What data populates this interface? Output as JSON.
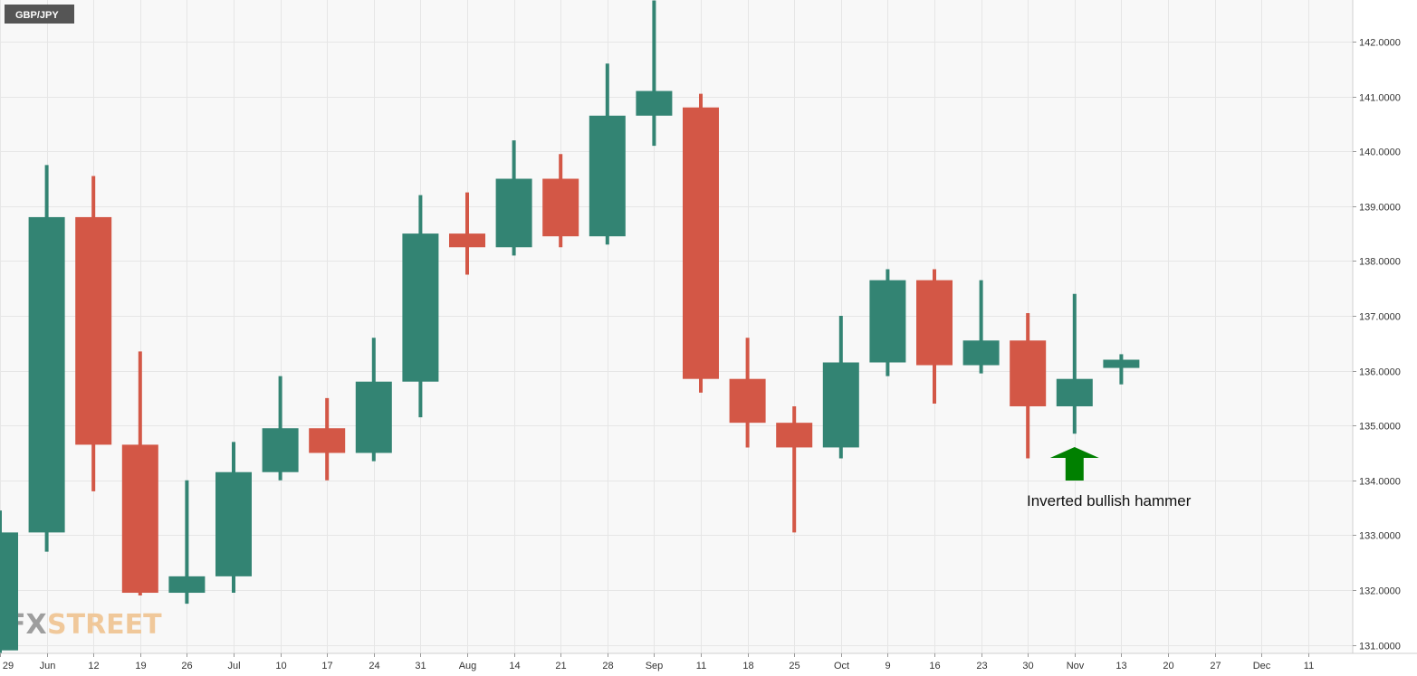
{
  "symbol": "GBP/JPY",
  "brand": {
    "fx": "FX",
    "street": "STREET"
  },
  "annotation": {
    "text": "Inverted bullish hammer",
    "arrow_color": "#008000"
  },
  "colors": {
    "bull": "#338473",
    "bear": "#d35746",
    "grid": "#e6e6e6",
    "plot_bg": "#f8f8f8",
    "axis_bg": "#ffffff",
    "symbol_bg": "#555555"
  },
  "chart_data": {
    "type": "candlestick",
    "timeframe": "weekly",
    "ylim": [
      130.8,
      142.8
    ],
    "yticks": [
      "142.0000",
      "141.0000",
      "140.0000",
      "139.0000",
      "138.0000",
      "137.0000",
      "136.0000",
      "135.0000",
      "134.0000",
      "133.0000",
      "132.0000",
      "131.0000"
    ],
    "xticks": [
      "29",
      "Jun",
      "12",
      "19",
      "26",
      "Jul",
      "10",
      "17",
      "24",
      "31",
      "Aug",
      "14",
      "21",
      "28",
      "Sep",
      "11",
      "18",
      "25",
      "Oct",
      "9",
      "16",
      "23",
      "30",
      "Nov",
      "13",
      "20",
      "27",
      "Dec",
      "11"
    ],
    "candles": [
      {
        "week": "29",
        "open": 130.9,
        "high": 133.45,
        "low": 130.85,
        "close": 133.05
      },
      {
        "week": "Jun",
        "open": 133.05,
        "high": 139.75,
        "low": 132.7,
        "close": 138.8
      },
      {
        "week": "12",
        "open": 138.8,
        "high": 139.55,
        "low": 133.8,
        "close": 134.65
      },
      {
        "week": "19",
        "open": 134.65,
        "high": 136.35,
        "low": 131.9,
        "close": 131.95
      },
      {
        "week": "26",
        "open": 131.95,
        "high": 134.0,
        "low": 131.75,
        "close": 132.25
      },
      {
        "week": "Jul",
        "open": 132.25,
        "high": 134.7,
        "low": 131.95,
        "close": 134.15
      },
      {
        "week": "10",
        "open": 134.15,
        "high": 135.9,
        "low": 134.0,
        "close": 134.95
      },
      {
        "week": "17",
        "open": 134.95,
        "high": 135.5,
        "low": 134.0,
        "close": 134.5
      },
      {
        "week": "24",
        "open": 134.5,
        "high": 136.6,
        "low": 134.35,
        "close": 135.8
      },
      {
        "week": "31",
        "open": 135.8,
        "high": 139.2,
        "low": 135.15,
        "close": 138.5
      },
      {
        "week": "Aug",
        "open": 138.5,
        "high": 139.25,
        "low": 137.75,
        "close": 138.25
      },
      {
        "week": "14",
        "open": 138.25,
        "high": 140.2,
        "low": 138.1,
        "close": 139.5
      },
      {
        "week": "21",
        "open": 139.5,
        "high": 139.95,
        "low": 138.25,
        "close": 138.45
      },
      {
        "week": "28",
        "open": 138.45,
        "high": 141.6,
        "low": 138.3,
        "close": 140.65
      },
      {
        "week": "Sep",
        "open": 140.65,
        "high": 142.75,
        "low": 140.1,
        "close": 141.1
      },
      {
        "week": "11",
        "open": 140.8,
        "high": 141.05,
        "low": 135.6,
        "close": 135.85
      },
      {
        "week": "18",
        "open": 135.85,
        "high": 136.6,
        "low": 134.6,
        "close": 135.05
      },
      {
        "week": "25",
        "open": 135.05,
        "high": 135.35,
        "low": 133.05,
        "close": 134.6
      },
      {
        "week": "Oct",
        "open": 134.6,
        "high": 137.0,
        "low": 134.4,
        "close": 136.15
      },
      {
        "week": "9",
        "open": 136.15,
        "high": 137.85,
        "low": 135.9,
        "close": 137.65
      },
      {
        "week": "16",
        "open": 137.65,
        "high": 137.85,
        "low": 135.4,
        "close": 136.1
      },
      {
        "week": "23",
        "open": 136.1,
        "high": 137.65,
        "low": 135.95,
        "close": 136.55
      },
      {
        "week": "30",
        "open": 136.55,
        "high": 137.05,
        "low": 134.4,
        "close": 135.35
      },
      {
        "week": "Nov",
        "open": 135.35,
        "high": 137.4,
        "low": 134.85,
        "close": 135.85
      },
      {
        "week": "13",
        "open": 136.05,
        "high": 136.3,
        "low": 135.75,
        "close": 136.2
      }
    ]
  }
}
